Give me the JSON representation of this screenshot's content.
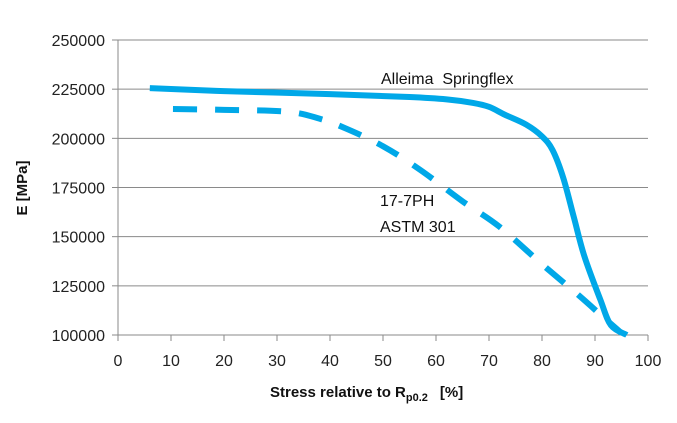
{
  "chart_data": {
    "type": "line",
    "title": "",
    "xlabel": "Stress relative to R",
    "xlabel_subscript": "p0.2",
    "xlabel_suffix": "[%]",
    "ylabel": "E [MPa]",
    "xlim": [
      0,
      100
    ],
    "ylim": [
      100000,
      250000
    ],
    "xticks": [
      0,
      10,
      20,
      30,
      40,
      50,
      60,
      70,
      80,
      90,
      100
    ],
    "yticks": [
      100000,
      125000,
      150000,
      175000,
      200000,
      225000,
      250000
    ],
    "grid": "horizontal",
    "line_color": "#00A8E8",
    "series": [
      {
        "name": "Alleima Springflex",
        "style": "solid",
        "x": [
          6,
          20,
          40,
          55,
          62,
          67,
          70,
          73,
          77,
          80,
          82,
          84,
          86,
          88,
          91,
          93,
          96
        ],
        "y": [
          225500,
          224000,
          222500,
          221000,
          219800,
          218000,
          216000,
          212000,
          207000,
          201000,
          194000,
          180000,
          160000,
          140000,
          118000,
          105000,
          100000
        ]
      },
      {
        "name": "17-7PH ASTM 301",
        "style": "dashed",
        "x": [
          7,
          20,
          32,
          38,
          43,
          50,
          57,
          65,
          72,
          80,
          87,
          92,
          95
        ],
        "y": [
          215000,
          214500,
          213500,
          210000,
          205000,
          196000,
          184000,
          168000,
          155000,
          136000,
          120000,
          108000,
          101000
        ]
      }
    ],
    "annotations": [
      {
        "text": "Alleima  Springflex",
        "series": "Alleima Springflex"
      },
      {
        "text": "17-7PH",
        "series": "17-7PH ASTM 301"
      },
      {
        "text": "ASTM 301",
        "series": "17-7PH ASTM 301"
      }
    ],
    "legend": "none (inline annotations)"
  }
}
